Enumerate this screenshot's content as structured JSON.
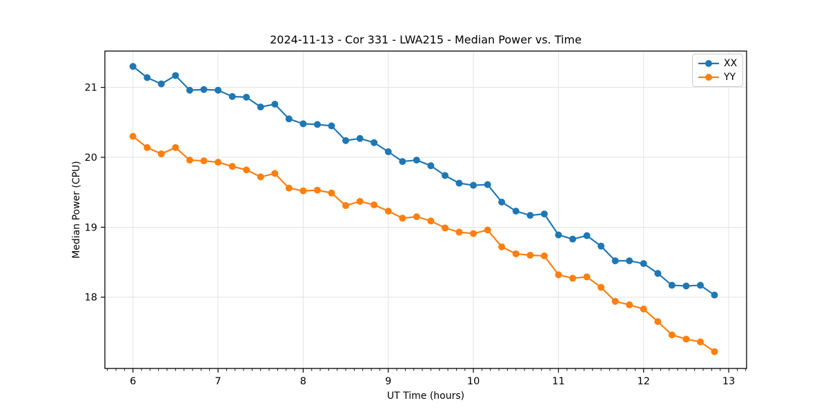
{
  "chart_data": {
    "type": "line",
    "title": "2024-11-13 - Cor 331 - LWA215 - Median Power vs. Time",
    "xlabel": "UT Time (hours)",
    "ylabel": "Median Power (CPU)",
    "xlim": [
      5.67,
      13.21
    ],
    "ylim": [
      16.98,
      21.52
    ],
    "xticks": [
      6,
      7,
      8,
      9,
      10,
      11,
      12,
      13
    ],
    "yticks": [
      18,
      19,
      20,
      21
    ],
    "x_minor_tick_step": 0.1,
    "grid": true,
    "grid_color": "#e2e2e2",
    "legend_position": "upper right",
    "marker": "circle",
    "x": [
      6.0,
      6.167,
      6.333,
      6.5,
      6.667,
      6.833,
      7.0,
      7.167,
      7.333,
      7.5,
      7.667,
      7.833,
      8.0,
      8.167,
      8.333,
      8.5,
      8.667,
      8.833,
      9.0,
      9.167,
      9.333,
      9.5,
      9.667,
      9.833,
      10.0,
      10.167,
      10.333,
      10.5,
      10.667,
      10.833,
      11.0,
      11.167,
      11.333,
      11.5,
      11.667,
      11.833,
      12.0,
      12.167,
      12.333,
      12.5,
      12.667,
      12.833
    ],
    "series": [
      {
        "name": "XX",
        "color": "#1f77b4",
        "values": [
          21.3,
          21.14,
          21.05,
          21.17,
          20.96,
          20.97,
          20.96,
          20.87,
          20.86,
          20.72,
          20.76,
          20.55,
          20.48,
          20.47,
          20.45,
          20.24,
          20.27,
          20.21,
          20.08,
          19.94,
          19.96,
          19.88,
          19.74,
          19.63,
          19.6,
          19.61,
          19.36,
          19.23,
          19.17,
          19.19,
          18.89,
          18.83,
          18.88,
          18.73,
          18.52,
          18.52,
          18.48,
          18.34,
          18.17,
          18.16,
          18.17,
          18.03
        ]
      },
      {
        "name": "YY",
        "color": "#ff7f0e",
        "values": [
          20.3,
          20.14,
          20.05,
          20.14,
          19.96,
          19.95,
          19.93,
          19.87,
          19.82,
          19.72,
          19.77,
          19.56,
          19.52,
          19.53,
          19.49,
          19.31,
          19.37,
          19.32,
          19.23,
          19.13,
          19.15,
          19.09,
          18.99,
          18.93,
          18.91,
          18.96,
          18.72,
          18.62,
          18.6,
          18.59,
          18.32,
          18.27,
          18.29,
          18.14,
          17.94,
          17.89,
          17.83,
          17.65,
          17.46,
          17.4,
          17.36,
          17.22
        ]
      }
    ]
  }
}
